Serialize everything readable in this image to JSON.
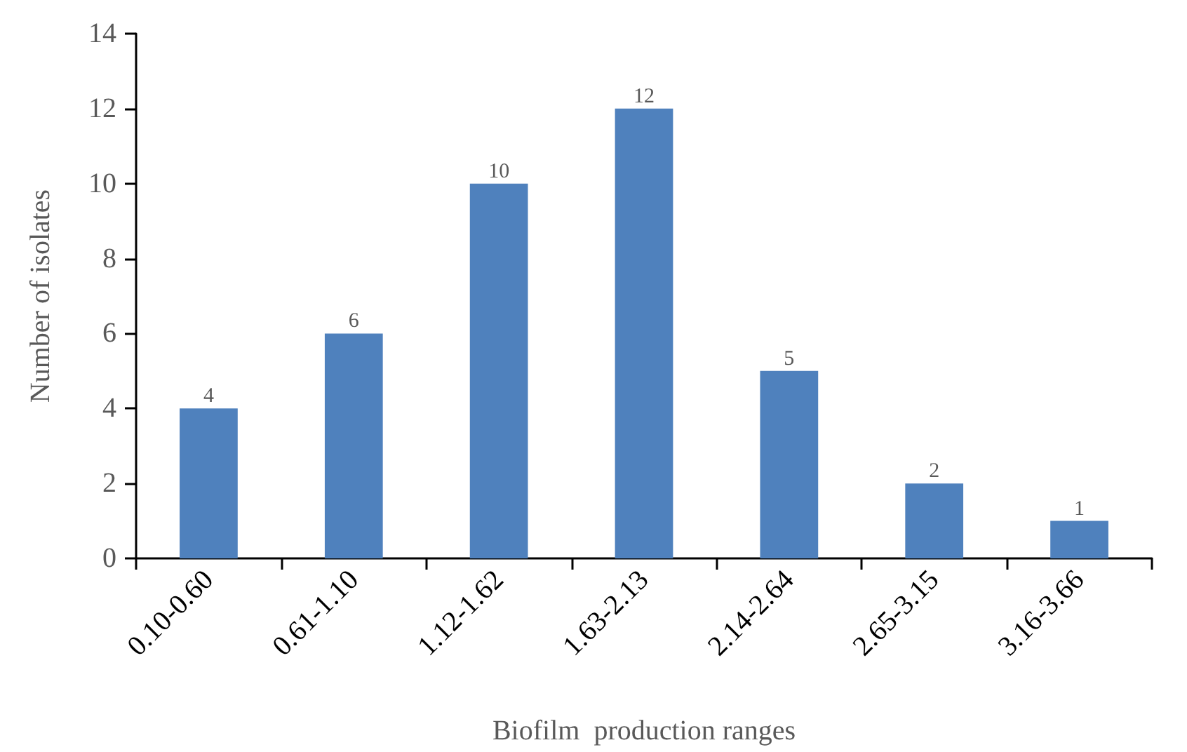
{
  "chart_data": {
    "type": "bar",
    "xlabel": "Biofilm  production ranges",
    "ylabel": "Number of isolates",
    "categories": [
      "0.10-0.60",
      "0.61-1.10",
      "1.12-1.62",
      "1.63-2.13",
      "2.14-2.64",
      "2.65-3.15",
      "3.16-3.66"
    ],
    "values": [
      4,
      6,
      10,
      12,
      5,
      2,
      1
    ],
    "color": "#4f81bd",
    "ylim": [
      0,
      14
    ],
    "yticks": [
      0,
      2,
      4,
      6,
      8,
      10,
      12,
      14
    ],
    "grid": false,
    "data_labels": true
  }
}
